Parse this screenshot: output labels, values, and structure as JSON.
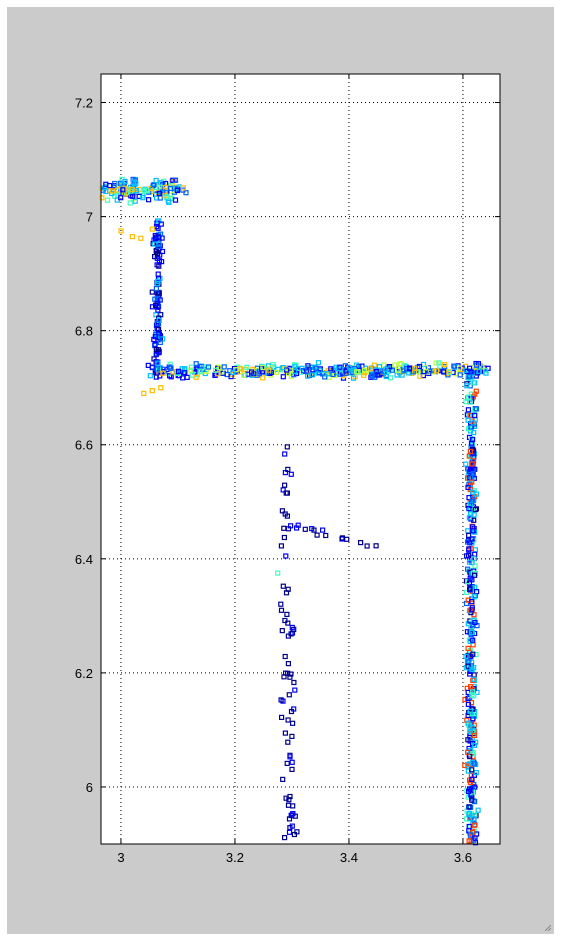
{
  "chart_data": {
    "type": "scatter",
    "title": "",
    "xlabel": "",
    "ylabel": "",
    "xlim": [
      2.965,
      3.665
    ],
    "ylim": [
      5.9,
      7.25
    ],
    "grid": true,
    "grid_style": "dotted",
    "x_ticks": [
      3,
      3.2,
      3.4,
      3.6
    ],
    "x_tick_labels": [
      "3",
      "3.2",
      "3.4",
      "3.6"
    ],
    "y_ticks": [
      6,
      6.2,
      6.4,
      6.6,
      6.8,
      7,
      7.2
    ],
    "y_tick_labels": [
      "6",
      "6.2",
      "6.4",
      "6.6",
      "6.8",
      "7",
      "7.2"
    ],
    "marker": "hollow-square",
    "colormap": "jet",
    "colors": {
      "background": "#cbcbcb",
      "axes": "#ffffff",
      "grid": "#000000",
      "palette": [
        "#00008f",
        "#0000ff",
        "#0060ff",
        "#00c0ff",
        "#40ffbf",
        "#bfff40",
        "#ffbf00",
        "#ff4000"
      ]
    },
    "clusters": [
      {
        "shape": "band",
        "x": [
          2.965,
          3.105
        ],
        "y": [
          7.045,
          7.045
        ],
        "spread": 0.028,
        "count": 150,
        "levels": [
          2,
          3,
          3,
          4,
          5,
          3,
          2,
          1,
          6
        ]
      },
      {
        "shape": "band",
        "x": [
          3.065,
          3.065
        ],
        "y": [
          6.99,
          6.72
        ],
        "spread": 0.011,
        "count": 110,
        "levels": [
          0,
          1,
          1,
          2,
          1,
          3
        ]
      },
      {
        "shape": "band",
        "x": [
          3.055,
          3.64
        ],
        "y": [
          6.73,
          6.73
        ],
        "spread": 0.017,
        "count": 380,
        "levels": [
          1,
          2,
          3,
          3,
          4,
          5,
          2,
          1,
          6
        ]
      },
      {
        "shape": "band",
        "x": [
          3.615,
          3.615
        ],
        "y": [
          6.72,
          5.9
        ],
        "spread": 0.013,
        "count": 400,
        "levels": [
          0,
          1,
          1,
          2,
          3,
          3,
          4,
          7
        ]
      },
      {
        "shape": "band",
        "x": [
          3.285,
          3.3
        ],
        "y": [
          6.6,
          5.9
        ],
        "spread": 0.018,
        "count": 75,
        "levels": [
          0,
          0,
          0,
          1
        ]
      },
      {
        "shape": "band",
        "x": [
          3.29,
          3.45
        ],
        "y": [
          6.46,
          6.42
        ],
        "spread": 0.012,
        "count": 14,
        "levels": [
          0,
          0,
          1
        ]
      },
      {
        "shape": "points",
        "points": [
          [
            3.0,
            6.975
          ],
          [
            3.02,
            6.965
          ],
          [
            3.035,
            6.962
          ],
          [
            3.055,
            6.978
          ],
          [
            3.04,
            6.69
          ],
          [
            3.055,
            6.695
          ],
          [
            3.07,
            6.7
          ],
          [
            3.275,
            6.375
          ]
        ],
        "levels": [
          6,
          6,
          6,
          6,
          6,
          6,
          6,
          4
        ]
      }
    ]
  }
}
